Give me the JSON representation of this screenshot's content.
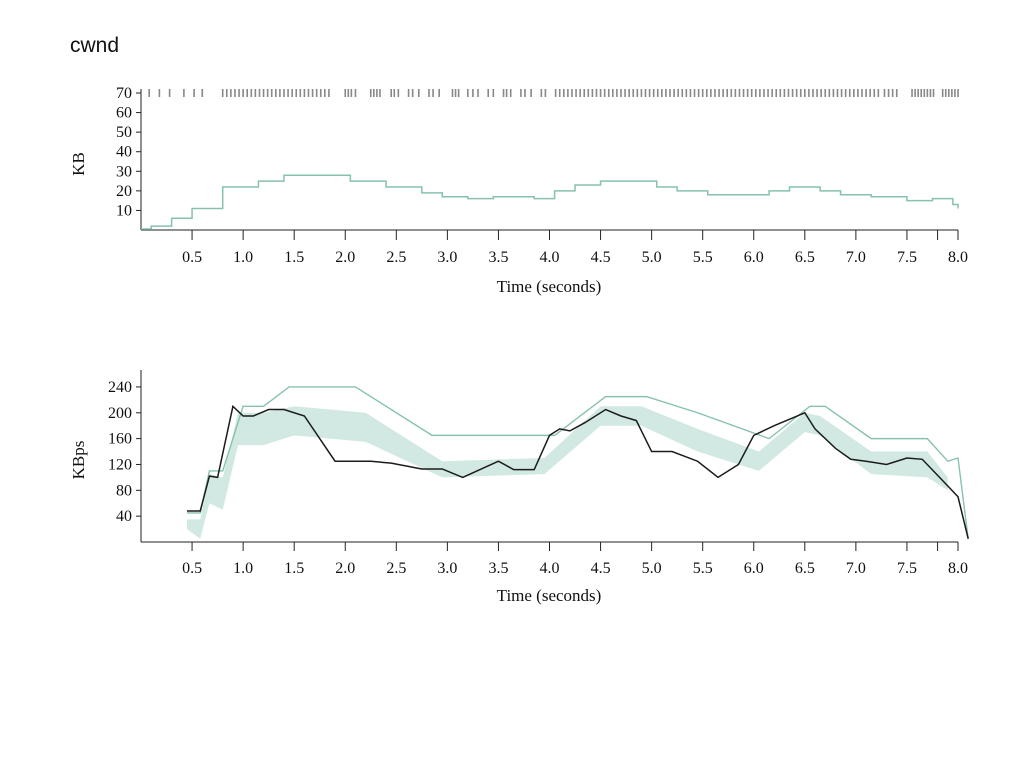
{
  "page": {
    "title": "cwnd"
  },
  "colors": {
    "teal": "#86c2ae",
    "band": "#d2e9e3",
    "dark": "#1b1b1b",
    "tick_marks": "#888888"
  },
  "chart_data": [
    {
      "type": "line",
      "name": "cwnd",
      "xlabel": "Time (seconds)",
      "ylabel": "KB",
      "xlim": [
        0,
        8.0
      ],
      "ylim": [
        0,
        70
      ],
      "xticks": [
        0.5,
        1.0,
        1.5,
        2.0,
        2.5,
        3.0,
        3.5,
        4.0,
        4.5,
        5.0,
        5.5,
        6.0,
        6.5,
        7.0,
        7.5,
        8.0
      ],
      "xtick_labels": [
        "0.5",
        "1.0",
        "1.5",
        "2.0",
        "2.5",
        "3.0",
        "3.5",
        "4.0",
        "4.5",
        "5.0",
        "5.5",
        "6.0",
        "6.5",
        "7.0",
        "7.5",
        "8.0"
      ],
      "extra_xticks": [
        8.0
      ],
      "yticks": [
        10,
        20,
        30,
        40,
        50,
        60,
        70
      ],
      "ytick_labels": [
        "10",
        "20",
        "30",
        "40",
        "50",
        "60",
        "70"
      ],
      "step_line": {
        "x": [
          0.0,
          0.1,
          0.3,
          0.5,
          0.8,
          1.15,
          1.4,
          1.85,
          2.05,
          2.4,
          2.75,
          2.95,
          3.2,
          3.45,
          3.85,
          4.05,
          4.25,
          4.5,
          4.75,
          5.05,
          5.25,
          5.55,
          5.85,
          6.15,
          6.35,
          6.65,
          6.85,
          7.15,
          7.5,
          7.75,
          7.95,
          8.0
        ],
        "y": [
          0.5,
          2,
          6,
          11,
          22,
          25,
          28,
          28,
          25,
          22,
          19,
          17,
          16,
          17,
          16,
          20,
          23,
          25,
          25,
          22,
          20,
          18,
          18,
          20,
          22,
          20,
          18,
          17,
          15,
          16,
          13,
          11
        ]
      },
      "event_marks": {
        "y": 70,
        "x": [
          0.08,
          0.18,
          0.28,
          0.42,
          0.52,
          0.6,
          0.8,
          0.84,
          0.88,
          0.92,
          0.96,
          1.0,
          1.04,
          1.08,
          1.12,
          1.16,
          1.2,
          1.24,
          1.28,
          1.32,
          1.36,
          1.4,
          1.44,
          1.48,
          1.52,
          1.56,
          1.6,
          1.64,
          1.68,
          1.72,
          1.76,
          1.8,
          1.84,
          2.0,
          2.03,
          2.06,
          2.1,
          2.25,
          2.28,
          2.31,
          2.34,
          2.45,
          2.48,
          2.52,
          2.62,
          2.66,
          2.72,
          2.82,
          2.86,
          2.92,
          3.05,
          3.08,
          3.11,
          3.2,
          3.25,
          3.3,
          3.4,
          3.45,
          3.55,
          3.58,
          3.62,
          3.72,
          3.76,
          3.82,
          3.92,
          3.96,
          4.06,
          4.1,
          4.14,
          4.18,
          4.22,
          4.26,
          4.3,
          4.34,
          4.38,
          4.42,
          4.46,
          4.5,
          4.54,
          4.58,
          4.62,
          4.66,
          4.7,
          4.74,
          4.78,
          4.82,
          4.86,
          4.9,
          4.94,
          4.98,
          5.02,
          5.06,
          5.1,
          5.14,
          5.18,
          5.22,
          5.26,
          5.3,
          5.34,
          5.38,
          5.42,
          5.46,
          5.5,
          5.54,
          5.58,
          5.62,
          5.66,
          5.7,
          5.74,
          5.78,
          5.82,
          5.86,
          5.9,
          5.94,
          5.98,
          6.02,
          6.06,
          6.1,
          6.14,
          6.18,
          6.22,
          6.26,
          6.3,
          6.34,
          6.38,
          6.42,
          6.46,
          6.5,
          6.54,
          6.58,
          6.62,
          6.66,
          6.7,
          6.74,
          6.78,
          6.82,
          6.86,
          6.9,
          6.94,
          6.98,
          7.02,
          7.06,
          7.1,
          7.14,
          7.18,
          7.22,
          7.28,
          7.32,
          7.36,
          7.4,
          7.55,
          7.58,
          7.61,
          7.64,
          7.67,
          7.7,
          7.73,
          7.76,
          7.85,
          7.88,
          7.91,
          7.94,
          7.97,
          8.0
        ]
      }
    },
    {
      "type": "line",
      "xlabel": "Time (seconds)",
      "ylabel": "KBps",
      "xlim": [
        0,
        8.0
      ],
      "ylim": [
        0,
        260
      ],
      "xticks": [
        0.5,
        1.0,
        1.5,
        2.0,
        2.5,
        3.0,
        3.5,
        4.0,
        4.5,
        5.0,
        5.5,
        6.0,
        6.5,
        7.0,
        7.5,
        8.0
      ],
      "xtick_labels": [
        "0.5",
        "1.0",
        "1.5",
        "2.0",
        "2.5",
        "3.0",
        "3.5",
        "4.0",
        "4.5",
        "5.0",
        "5.5",
        "6.0",
        "6.5",
        "7.0",
        "7.5",
        "8.0"
      ],
      "extra_xticks": [
        8.0
      ],
      "yticks": [
        40,
        80,
        120,
        160,
        200,
        240
      ],
      "ytick_labels": [
        "40",
        "80",
        "120",
        "160",
        "200",
        "240"
      ],
      "upper_line": {
        "x": [
          0.45,
          0.58,
          0.67,
          0.8,
          1.0,
          1.2,
          1.45,
          2.1,
          2.85,
          4.05,
          4.55,
          4.95,
          5.45,
          6.15,
          6.55,
          6.7,
          7.15,
          7.7,
          7.9,
          8.0,
          8.1
        ],
        "y": [
          45,
          45,
          110,
          110,
          210,
          210,
          240,
          240,
          165,
          165,
          225,
          225,
          200,
          160,
          210,
          210,
          160,
          160,
          125,
          130,
          5
        ]
      },
      "band": {
        "x": [
          0.45,
          0.58,
          0.67,
          0.8,
          0.95,
          1.2,
          1.5,
          2.2,
          2.95,
          3.95,
          4.5,
          4.9,
          5.45,
          6.05,
          6.5,
          6.65,
          7.15,
          7.7,
          7.9
        ],
        "lower": [
          20,
          5,
          60,
          50,
          150,
          150,
          165,
          155,
          100,
          105,
          180,
          180,
          140,
          110,
          170,
          165,
          105,
          100,
          80
        ],
        "upper": [
          35,
          35,
          105,
          100,
          200,
          200,
          210,
          200,
          125,
          130,
          210,
          210,
          175,
          140,
          200,
          195,
          140,
          140,
          100
        ]
      },
      "dark_line": {
        "x": [
          0.45,
          0.58,
          0.67,
          0.75,
          0.9,
          1.0,
          1.1,
          1.25,
          1.4,
          1.6,
          1.9,
          2.05,
          2.25,
          2.45,
          2.75,
          2.95,
          3.15,
          3.5,
          3.65,
          3.85,
          4.0,
          4.1,
          4.2,
          4.35,
          4.55,
          4.7,
          4.85,
          5.0,
          5.2,
          5.45,
          5.65,
          5.85,
          6.0,
          6.2,
          6.5,
          6.6,
          6.8,
          6.95,
          7.1,
          7.3,
          7.5,
          7.65,
          7.85,
          8.0,
          8.1
        ],
        "y": [
          48,
          48,
          102,
          100,
          210,
          195,
          195,
          205,
          205,
          195,
          125,
          125,
          125,
          122,
          113,
          113,
          100,
          125,
          112,
          112,
          165,
          175,
          172,
          185,
          205,
          195,
          188,
          140,
          140,
          125,
          100,
          120,
          165,
          180,
          200,
          175,
          145,
          128,
          125,
          120,
          130,
          128,
          95,
          70,
          5
        ]
      }
    }
  ]
}
